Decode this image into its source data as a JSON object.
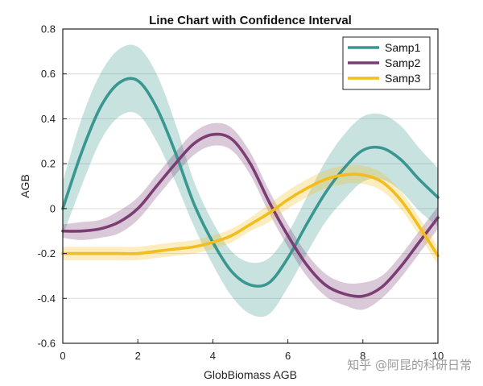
{
  "chart_data": {
    "type": "line",
    "title": "Line Chart with Confidence Interval",
    "xlabel": "GlobBiomass AGB",
    "ylabel": "AGB",
    "xlim": [
      0,
      10
    ],
    "ylim": [
      -0.6,
      0.8
    ],
    "x_ticks": [
      "0",
      "2",
      "4",
      "6",
      "8",
      "10"
    ],
    "y_ticks": [
      "-0.6",
      "-0.4",
      "-0.2",
      "0",
      "0.2",
      "0.4",
      "0.6",
      "0.8"
    ],
    "grid": "horizontal",
    "legend_position": "top-right",
    "x": [
      0,
      0.5,
      1,
      1.5,
      2,
      2.5,
      3,
      3.5,
      4,
      4.5,
      5,
      5.5,
      6,
      6.5,
      7,
      7.5,
      8,
      8.5,
      9,
      9.5,
      10
    ],
    "series": [
      {
        "name": "Samp1",
        "color": "#3a9690",
        "band_color": "#3a9690",
        "values": [
          0.0,
          0.25,
          0.45,
          0.56,
          0.57,
          0.45,
          0.25,
          0.02,
          -0.15,
          -0.28,
          -0.34,
          -0.33,
          -0.22,
          -0.07,
          0.07,
          0.18,
          0.26,
          0.27,
          0.22,
          0.13,
          0.05
        ],
        "upper": [
          0.12,
          0.4,
          0.6,
          0.71,
          0.72,
          0.6,
          0.38,
          0.12,
          -0.06,
          -0.19,
          -0.24,
          -0.22,
          -0.11,
          0.05,
          0.21,
          0.33,
          0.41,
          0.42,
          0.37,
          0.27,
          0.18
        ],
        "lower": [
          -0.12,
          0.1,
          0.3,
          0.41,
          0.42,
          0.3,
          0.12,
          -0.08,
          -0.25,
          -0.39,
          -0.47,
          -0.47,
          -0.35,
          -0.2,
          -0.06,
          0.04,
          0.12,
          0.13,
          0.08,
          -0.01,
          -0.08
        ]
      },
      {
        "name": "Samp2",
        "color": "#7b3d74",
        "band_color": "#7b3d74",
        "values": [
          -0.1,
          -0.1,
          -0.09,
          -0.06,
          0.0,
          0.1,
          0.2,
          0.29,
          0.33,
          0.31,
          0.2,
          0.03,
          -0.12,
          -0.25,
          -0.34,
          -0.38,
          -0.39,
          -0.35,
          -0.26,
          -0.15,
          -0.04
        ],
        "upper": [
          -0.07,
          -0.06,
          -0.05,
          -0.01,
          0.05,
          0.15,
          0.25,
          0.34,
          0.38,
          0.36,
          0.25,
          0.08,
          -0.07,
          -0.2,
          -0.29,
          -0.33,
          -0.33,
          -0.3,
          -0.21,
          -0.1,
          0.01
        ],
        "lower": [
          -0.13,
          -0.14,
          -0.13,
          -0.11,
          -0.05,
          0.05,
          0.15,
          0.24,
          0.28,
          0.26,
          0.15,
          -0.02,
          -0.17,
          -0.3,
          -0.39,
          -0.43,
          -0.45,
          -0.4,
          -0.31,
          -0.2,
          -0.09
        ]
      },
      {
        "name": "Samp3",
        "color": "#f2bd1d",
        "band_color": "#f2bd1d",
        "values": [
          -0.2,
          -0.2,
          -0.2,
          -0.2,
          -0.2,
          -0.19,
          -0.18,
          -0.17,
          -0.15,
          -0.12,
          -0.07,
          -0.02,
          0.04,
          0.09,
          0.13,
          0.15,
          0.15,
          0.12,
          0.04,
          -0.08,
          -0.21
        ],
        "upper": [
          -0.17,
          -0.17,
          -0.17,
          -0.17,
          -0.17,
          -0.16,
          -0.15,
          -0.14,
          -0.12,
          -0.09,
          -0.04,
          0.02,
          0.08,
          0.13,
          0.17,
          0.19,
          0.19,
          0.16,
          0.08,
          -0.04,
          -0.17
        ],
        "lower": [
          -0.23,
          -0.23,
          -0.23,
          -0.23,
          -0.23,
          -0.22,
          -0.21,
          -0.2,
          -0.18,
          -0.15,
          -0.1,
          -0.06,
          0.0,
          0.05,
          0.09,
          0.11,
          0.11,
          0.08,
          0.0,
          -0.12,
          -0.25
        ]
      }
    ]
  },
  "watermark": "知乎 @阿昆的科研日常"
}
